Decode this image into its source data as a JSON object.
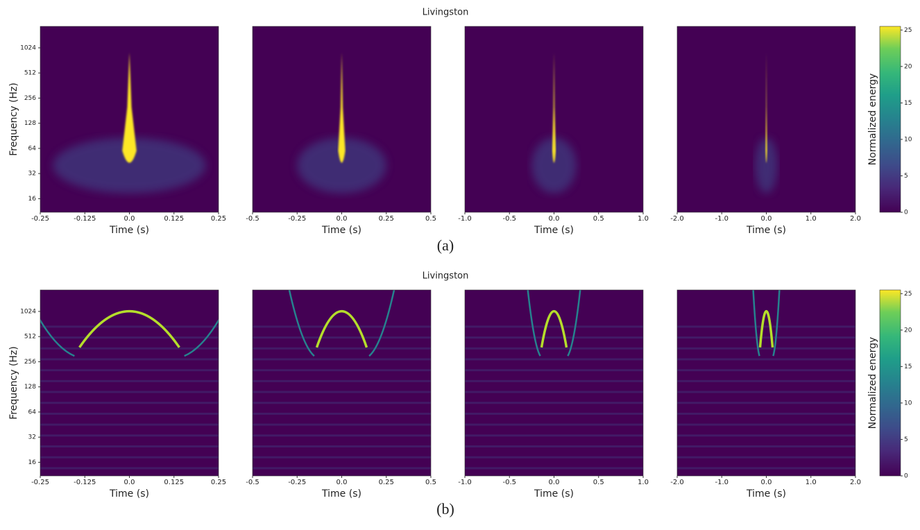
{
  "chart_data": [
    {
      "type": "spectrogram",
      "title": "Livingston",
      "caption": "(a)",
      "ylabel": "Frequency (Hz)",
      "xlabel": "Time (s)",
      "yscale": "log",
      "ylim": [
        11,
        1850
      ],
      "yticks": [
        16,
        32,
        64,
        128,
        256,
        512,
        1024
      ],
      "panels": [
        {
          "xlim": [
            -0.25,
            0.25
          ],
          "xticks": [
            -0.25,
            -0.125,
            {
              "value": 0,
              "label": "0.0"
            },
            0.125,
            0.25
          ]
        },
        {
          "xlim": [
            -0.5,
            0.5
          ],
          "xticks": [
            -0.5,
            -0.25,
            {
              "value": 0,
              "label": "0.0"
            },
            0.25,
            0.5
          ]
        },
        {
          "xlim": [
            -1,
            1
          ],
          "xticks": [
            {
              "value": -1,
              "label": "-1.0"
            },
            -0.5,
            {
              "value": 0,
              "label": "0.0"
            },
            0.5,
            {
              "value": 1,
              "label": "1.0"
            }
          ]
        },
        {
          "xlim": [
            -2,
            2
          ],
          "xticks": [
            {
              "value": -2,
              "label": "-2.0"
            },
            {
              "value": -1,
              "label": "-1.0"
            },
            {
              "value": 0,
              "label": "0.0"
            },
            {
              "value": 1,
              "label": "1.0"
            },
            {
              "value": 2,
              "label": "2.0"
            }
          ]
        }
      ],
      "colorbar": {
        "label": "Normalized energy",
        "colormap": "viridis",
        "lim": [
          0,
          25.5
        ],
        "ticks": [
          0,
          5,
          10,
          15,
          20,
          25
        ]
      }
    },
    {
      "type": "spectrogram",
      "title": "Livingston",
      "caption": "(b)",
      "ylabel": "Frequency (Hz)",
      "xlabel": "Time (s)",
      "yscale": "log",
      "ylim": [
        11,
        1850
      ],
      "yticks": [
        16,
        32,
        64,
        128,
        256,
        512,
        1024
      ],
      "panels": [
        {
          "xlim": [
            -0.25,
            0.25
          ],
          "xticks": [
            -0.25,
            -0.125,
            {
              "value": 0,
              "label": "0.0"
            },
            0.125,
            0.25
          ]
        },
        {
          "xlim": [
            -0.5,
            0.5
          ],
          "xticks": [
            -0.5,
            -0.25,
            {
              "value": 0,
              "label": "0.0"
            },
            0.25,
            0.5
          ]
        },
        {
          "xlim": [
            -1,
            1
          ],
          "xticks": [
            {
              "value": -1,
              "label": "-1.0"
            },
            -0.5,
            {
              "value": 0,
              "label": "0.0"
            },
            0.5,
            {
              "value": 1,
              "label": "1.0"
            }
          ]
        },
        {
          "xlim": [
            -2,
            2
          ],
          "xticks": [
            {
              "value": -2,
              "label": "-2.0"
            },
            {
              "value": -1,
              "label": "-1.0"
            },
            {
              "value": 0,
              "label": "0.0"
            },
            {
              "value": 1,
              "label": "1.0"
            },
            {
              "value": 2,
              "label": "2.0"
            }
          ]
        }
      ],
      "colorbar": {
        "label": "Normalized energy",
        "colormap": "viridis",
        "lim": [
          0,
          25.5
        ],
        "ticks": [
          0,
          5,
          10,
          15,
          20,
          25
        ]
      }
    }
  ]
}
